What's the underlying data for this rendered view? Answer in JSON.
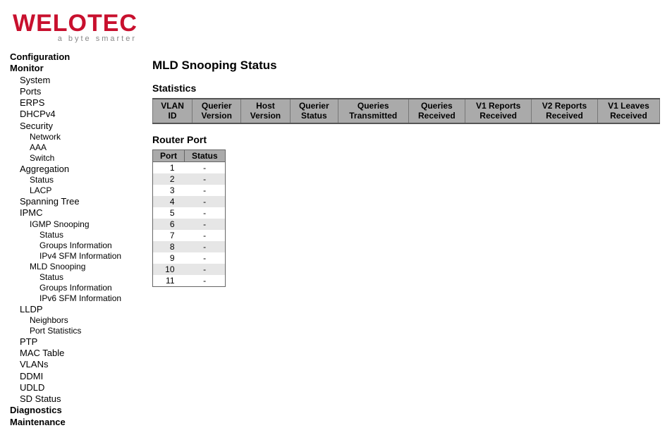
{
  "logo": {
    "text": "WELOTEC",
    "tagline": "a byte smarter",
    "color": "#c8102e"
  },
  "nav": {
    "items": [
      {
        "label": "Configuration",
        "level": 0
      },
      {
        "label": "Monitor",
        "level": 0
      },
      {
        "label": "System",
        "level": 1
      },
      {
        "label": "Ports",
        "level": 1
      },
      {
        "label": "ERPS",
        "level": 1
      },
      {
        "label": "DHCPv4",
        "level": 1
      },
      {
        "label": "Security",
        "level": 1
      },
      {
        "label": "Network",
        "level": 2
      },
      {
        "label": "AAA",
        "level": 2
      },
      {
        "label": "Switch",
        "level": 2
      },
      {
        "label": "Aggregation",
        "level": 1
      },
      {
        "label": "Status",
        "level": 2
      },
      {
        "label": "LACP",
        "level": 2
      },
      {
        "label": "Spanning Tree",
        "level": 1
      },
      {
        "label": "IPMC",
        "level": 1
      },
      {
        "label": "IGMP Snooping",
        "level": 2
      },
      {
        "label": "Status",
        "level": 3
      },
      {
        "label": "Groups Information",
        "level": 3
      },
      {
        "label": "IPv4 SFM Information",
        "level": 3
      },
      {
        "label": "MLD Snooping",
        "level": 2
      },
      {
        "label": "Status",
        "level": 3
      },
      {
        "label": "Groups Information",
        "level": 3
      },
      {
        "label": "IPv6 SFM Information",
        "level": 3
      },
      {
        "label": "LLDP",
        "level": 1
      },
      {
        "label": "Neighbors",
        "level": 2
      },
      {
        "label": "Port Statistics",
        "level": 2
      },
      {
        "label": "PTP",
        "level": 1
      },
      {
        "label": "MAC Table",
        "level": 1
      },
      {
        "label": "VLANs",
        "level": 1
      },
      {
        "label": "DDMI",
        "level": 1
      },
      {
        "label": "UDLD",
        "level": 1
      },
      {
        "label": "SD Status",
        "level": 1
      },
      {
        "label": "Diagnostics",
        "level": 0
      },
      {
        "label": "Maintenance",
        "level": 0
      }
    ]
  },
  "page": {
    "title": "MLD Snooping Status",
    "stats_heading": "Statistics",
    "stats_columns": [
      "VLAN ID",
      "Querier Version",
      "Host Version",
      "Querier Status",
      "Queries Transmitted",
      "Queries Received",
      "V1 Reports Received",
      "V2 Reports Received",
      "V1 Leaves Received"
    ],
    "routerport_heading": "Router Port",
    "routerport_columns": [
      "Port",
      "Status"
    ],
    "routerport_rows": [
      {
        "port": "1",
        "status": "-"
      },
      {
        "port": "2",
        "status": "-"
      },
      {
        "port": "3",
        "status": "-"
      },
      {
        "port": "4",
        "status": "-"
      },
      {
        "port": "5",
        "status": "-"
      },
      {
        "port": "6",
        "status": "-"
      },
      {
        "port": "7",
        "status": "-"
      },
      {
        "port": "8",
        "status": "-"
      },
      {
        "port": "9",
        "status": "-"
      },
      {
        "port": "10",
        "status": "-"
      },
      {
        "port": "11",
        "status": "-"
      }
    ],
    "colors": {
      "header_bg": "#aaaaaa",
      "row_even_bg": "#e6e6e6",
      "row_odd_bg": "#ffffff",
      "border": "#666666"
    }
  }
}
